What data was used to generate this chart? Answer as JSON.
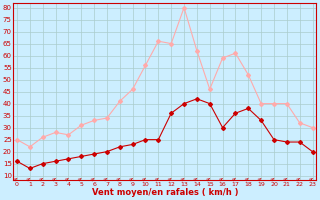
{
  "hours": [
    0,
    1,
    2,
    3,
    4,
    5,
    6,
    7,
    8,
    9,
    10,
    11,
    12,
    13,
    14,
    15,
    16,
    17,
    18,
    19,
    20,
    21,
    22,
    23
  ],
  "wind_avg": [
    16,
    13,
    15,
    16,
    17,
    18,
    19,
    20,
    22,
    23,
    25,
    25,
    36,
    40,
    42,
    40,
    30,
    36,
    38,
    33,
    25,
    24,
    24,
    20
  ],
  "wind_gust": [
    25,
    22,
    26,
    28,
    27,
    31,
    33,
    34,
    41,
    46,
    56,
    66,
    65,
    80,
    62,
    46,
    59,
    61,
    52,
    40,
    40,
    40,
    32,
    30
  ],
  "avg_color": "#cc0000",
  "gust_color": "#ffaaaa",
  "bg_color": "#cceeff",
  "grid_color": "#aacccc",
  "xlabel": "Vent moyen/en rafales ( km/h )",
  "yticks": [
    10,
    15,
    20,
    25,
    30,
    35,
    40,
    45,
    50,
    55,
    60,
    65,
    70,
    75,
    80
  ],
  "ylim": [
    8,
    82
  ],
  "xlim": [
    -0.3,
    23.3
  ]
}
